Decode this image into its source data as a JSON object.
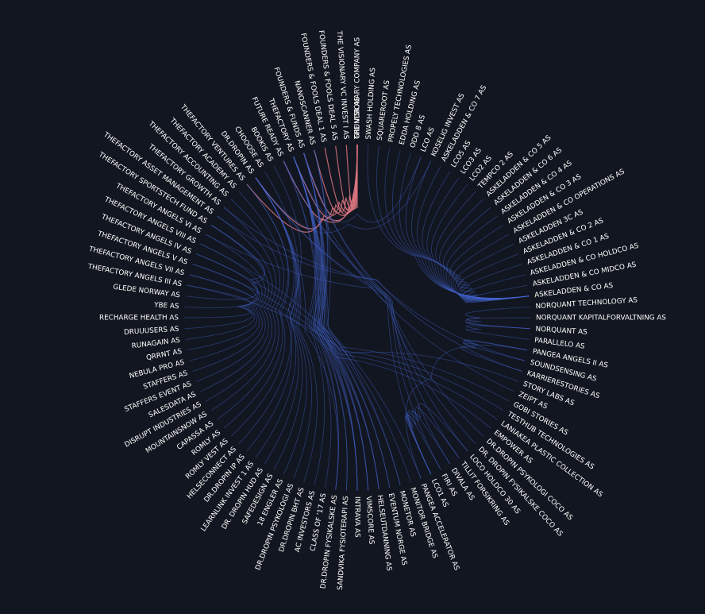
{
  "colors": {
    "background": "#121620",
    "label": "#ffffff",
    "link_blue": "#4466d4",
    "link_red": "#d9747f"
  },
  "diagram": {
    "type": "hierarchical-edge-bundling",
    "nodes": [
      "GRUNDR AS",
      "SWASH HOLDING AS",
      "SQUAREROOT AS",
      "PROPELY TECHNOLOGIES AS",
      "EDDA HOLDING AS",
      "ODD 8 AS",
      "LCO AS",
      "KOSELIG INVEST AS",
      "ASKELADDEN & CO 7 AS",
      "LCO5 AS",
      "LCO3 AS",
      "LCO2 AS",
      "TEMPCO 2 AS",
      "ASKELADDEN & CO 5 AS",
      "ASKELADDEN & CO 6 AS",
      "ASKELADDEN & CO 4 AS",
      "ASKELADDEN & CO 3 AS",
      "ASKELADDEN & CO OPERATIONS AS",
      "ASKELADDEN 3C AS",
      "ASKELADDEN & CO 2 AS",
      "ASKELADDEN & CO 1 AS",
      "ASKELADDEN & CO HOLDCO AS",
      "ASKELADDEN & CO MIDCO AS",
      "ASKELADDEN & CO AS",
      "NORQUANT TECHNOLOGY AS",
      "NORQUANT KAPITALFORVALTNING AS",
      "NORQUANT AS",
      "PARALLELO AS",
      "PANGEA ANGELS II AS",
      "SOUNDSENSING AS",
      "KARRIERESTORIES AS",
      "STORY LABS AS",
      "ZEIPT AS",
      "GOBI STORIES AS",
      "TESTHUB TECHNOLOGIES AS",
      "LANIAKEA PLASTIC COLLECTION AS",
      "EMPOWER AS",
      "DR.DROPIN PSYKOLOGI COCO AS",
      "DR. DROPIN FYSIKALSKE COCO AS",
      "LOCO HOLDCO 30 AS",
      "TILLIT FORSIKRING AS",
      "DIVALA AS",
      "FIRI AS",
      "LCO1 AS",
      "PANGEA ACCELERATOR AS",
      "MONITOR BRIDGE AS",
      "MONETOR AS",
      "EVENTUM NORGE AS",
      "HELSEUTDANNING AS",
      "VIMSCORE AS",
      "INTRAVA AS",
      "SANDVIKA FYSIOTERAPI AS",
      "DR.DROPIN FYSIKALSKE AS",
      "CLASS OF '17 AS",
      "AC INVESTORS AS",
      "DR.DROPIN BHT AS",
      "DR.DROPIN PSYKOLOGI AS",
      "18 ENGLER AS",
      "SAFEDESIGN AS",
      "DR. DROPIN HUD AS",
      "LEARNLINK INVEST 1 AS",
      "DR.DROPIN IP AS",
      "HELSECONNECT AS",
      "ROMLY VEST AS",
      "ROMLY AS",
      "CAPASSA AS",
      "MOUNTAINSNOW AS",
      "DISRUPT INDUSTRIES AS",
      "SALESDATA AS",
      "STAFFERS EVENT AS",
      "STAFFERS AS",
      "NEBULA PRO AS",
      "QRRNT AS",
      "RUNAGAIN AS",
      "DRUUUSERS AS",
      "RECHARGE HEALTH AS",
      "YBE AS",
      "GLEDE NORWAY AS",
      "THEFACTORY ANGELS III AS",
      "THEFACTORY ANGELS VII AS",
      "THEFACTORY ANGELS V AS",
      "THEFACTORY ANGELS IV AS",
      "THEFACTORY ANGELS VIII AS",
      "THEFACTORY ANGELS VI AS",
      "THEFACTORY SPORTSTECH FUND AS",
      "THEFACTORY ASSET MANAGEMENT AS",
      "THEFACTORY GROWTH AS",
      "THEFACTORY ACCOUNTING AS",
      "THEFACTORY ACADEMY AS",
      "THEFACTORY VENTURES AS",
      "DR.DROPIN AS",
      "CHOOOSE AS",
      "BOOKIS AS",
      "FUTURE READY AS",
      "THEFACTORY AS",
      "FOUNDERS & FUNDS AS",
      "NANOSCANNER AS",
      "FOUNDERS & FOOLS DEAL 1 AS",
      "FOUNDERS & FOOLS DEAL 5 AS",
      "THE VISIONARY VC INVEST I AS",
      "THE VISIONARY COMPANY AS"
    ],
    "links": [
      [
        "GRUNDR AS",
        "THE VISIONARY COMPANY AS",
        "red"
      ],
      [
        "GRUNDR AS",
        "THE VISIONARY VC INVEST I AS",
        "red"
      ],
      [
        "GRUNDR AS",
        "FOUNDERS & FOOLS DEAL 5 AS",
        "red"
      ],
      [
        "GRUNDR AS",
        "FOUNDERS & FOOLS DEAL 1 AS",
        "red"
      ],
      [
        "GRUNDR AS",
        "NANOSCANNER AS",
        "red"
      ],
      [
        "GRUNDR AS",
        "FOUNDERS & FUNDS AS",
        "red"
      ],
      [
        "GRUNDR AS",
        "THEFACTORY AS",
        "red"
      ],
      [
        "GRUNDR AS",
        "FUTURE READY AS",
        "red"
      ],
      [
        "GRUNDR AS",
        "DR.DROPIN AS",
        "red"
      ],
      [
        "GRUNDR AS",
        "THEFACTORY VENTURES AS",
        "red"
      ],
      [
        "THEFACTORY AS",
        "VIMSCORE AS",
        "blue"
      ],
      [
        "THEFACTORY AS",
        "INTRAVA AS",
        "blue"
      ],
      [
        "THEFACTORY AS",
        "HELSEUTDANNING AS",
        "blue"
      ],
      [
        "THEFACTORY AS",
        "EVENTUM NORGE AS",
        "blue"
      ],
      [
        "THEFACTORY AS",
        "SANDVIKA FYSIOTERAPI AS",
        "blue"
      ],
      [
        "THEFACTORY AS",
        "DR.DROPIN FYSIKALSKE AS",
        "blue"
      ],
      [
        "THEFACTORY AS",
        "MONETOR AS",
        "blue"
      ],
      [
        "THEFACTORY AS",
        "MONITOR BRIDGE AS",
        "blue"
      ],
      [
        "THEFACTORY AS",
        "CLASS OF '17 AS",
        "blue"
      ],
      [
        "THEFACTORY AS",
        "AC INVESTORS AS",
        "blue"
      ],
      [
        "THEFACTORY AS",
        "PANGEA ACCELERATOR AS",
        "blue"
      ],
      [
        "THEFACTORY AS",
        "LCO1 AS",
        "blue"
      ],
      [
        "FOUNDERS & FUNDS AS",
        "INTRAVA AS",
        "blue"
      ],
      [
        "FOUNDERS & FUNDS AS",
        "VIMSCORE AS",
        "blue"
      ],
      [
        "FOUNDERS & FUNDS AS",
        "HELSEUTDANNING AS",
        "blue"
      ],
      [
        "FOUNDERS & FUNDS AS",
        "SANDVIKA FYSIOTERAPI AS",
        "blue"
      ],
      [
        "FOUNDERS & FUNDS AS",
        "EVENTUM NORGE AS",
        "blue"
      ],
      [
        "FOUNDERS & FUNDS AS",
        "DR.DROPIN FYSIKALSKE AS",
        "blue"
      ],
      [
        "FOUNDERS & FUNDS AS",
        "FIRI AS",
        "blue"
      ],
      [
        "FOUNDERS & FUNDS AS",
        "DIVALA AS",
        "blue"
      ],
      [
        "NANOSCANNER AS",
        "VIMSCORE AS",
        "blue"
      ],
      [
        "NANOSCANNER AS",
        "INTRAVA AS",
        "blue"
      ],
      [
        "NANOSCANNER AS",
        "MONETOR AS",
        "blue"
      ],
      [
        "FUTURE READY AS",
        "INTRAVA AS",
        "blue"
      ],
      [
        "FUTURE READY AS",
        "HELSEUTDANNING AS",
        "blue"
      ],
      [
        "FUTURE READY AS",
        "TILLIT FORSIKRING AS",
        "blue"
      ],
      [
        "FUTURE READY AS",
        "LOCO HOLDCO 30 AS",
        "blue"
      ],
      [
        "DR.DROPIN AS",
        "DR.DROPIN BHT AS",
        "blue"
      ],
      [
        "DR.DROPIN AS",
        "DR.DROPIN PSYKOLOGI AS",
        "blue"
      ],
      [
        "DR.DROPIN AS",
        "DR. DROPIN HUD AS",
        "blue"
      ],
      [
        "DR.DROPIN AS",
        "DR.DROPIN IP AS",
        "blue"
      ],
      [
        "DR.DROPIN AS",
        "DR.DROPIN FYSIKALSKE AS",
        "blue"
      ],
      [
        "DR.DROPIN AS",
        "DR.DROPIN PSYKOLOGI COCO AS",
        "blue"
      ],
      [
        "DR.DROPIN AS",
        "DR. DROPIN FYSIKALSKE COCO AS",
        "blue"
      ],
      [
        "DR.DROPIN AS",
        "18 ENGLER AS",
        "blue"
      ],
      [
        "DR.DROPIN AS",
        "SAFEDESIGN AS",
        "blue"
      ],
      [
        "CHOOOSE AS",
        "LEARNLINK INVEST 1 AS",
        "blue"
      ],
      [
        "BOOKIS AS",
        "HELSECONNECT AS",
        "blue"
      ],
      [
        "THEFACTORY VENTURES AS",
        "ROMLY VEST AS",
        "blue"
      ],
      [
        "THEFACTORY VENTURES AS",
        "ROMLY AS",
        "blue"
      ],
      [
        "THEFACTORY ACADEMY AS",
        "CAPASSA AS",
        "blue"
      ],
      [
        "THEFACTORY ACCOUNTING AS",
        "MOUNTAINSNOW AS",
        "blue"
      ],
      [
        "THEFACTORY GROWTH AS",
        "DISRUPT INDUSTRIES AS",
        "blue"
      ],
      [
        "THEFACTORY ASSET MANAGEMENT AS",
        "SALESDATA AS",
        "blue"
      ],
      [
        "THEFACTORY SPORTSTECH FUND AS",
        "STAFFERS EVENT AS",
        "blue"
      ],
      [
        "THEFACTORY ANGELS VI AS",
        "STAFFERS AS",
        "blue"
      ],
      [
        "THEFACTORY ANGELS VIII AS",
        "NEBULA PRO AS",
        "blue"
      ],
      [
        "THEFACTORY ANGELS IV AS",
        "QRRNT AS",
        "blue"
      ],
      [
        "THEFACTORY ANGELS V AS",
        "RUNAGAIN AS",
        "blue"
      ],
      [
        "THEFACTORY ANGELS VII AS",
        "DRUUUSERS AS",
        "blue"
      ],
      [
        "THEFACTORY ANGELS III AS",
        "RECHARGE HEALTH AS",
        "blue"
      ],
      [
        "THEFACTORY SPORTSTECH FUND AS",
        "YBE AS",
        "blue"
      ],
      [
        "THEFACTORY SPORTSTECH FUND AS",
        "GLEDE NORWAY AS",
        "blue"
      ],
      [
        "THEFACTORY ANGELS VI AS",
        "ZEIPT AS",
        "blue"
      ],
      [
        "THEFACTORY ANGELS VIII AS",
        "GOBI STORIES AS",
        "blue"
      ],
      [
        "THEFACTORY ANGELS IV AS",
        "TESTHUB TECHNOLOGIES AS",
        "blue"
      ],
      [
        "THEFACTORY ANGELS V AS",
        "LANIAKEA PLASTIC COLLECTION AS",
        "blue"
      ],
      [
        "THEFACTORY ANGELS VII AS",
        "EMPOWER AS",
        "blue"
      ],
      [
        "THEFACTORY ANGELS III AS",
        "STORY LABS AS",
        "blue"
      ],
      [
        "THEFACTORY GROWTH AS",
        "KARRIERESTORIES AS",
        "blue"
      ],
      [
        "THEFACTORY ASSET MANAGEMENT AS",
        "SOUNDSENSING AS",
        "blue"
      ],
      [
        "ASKELADDEN & CO AS",
        "KOSELIG INVEST AS",
        "blue"
      ],
      [
        "ASKELADDEN & CO AS",
        "ASKELADDEN & CO 7 AS",
        "blue"
      ],
      [
        "ASKELADDEN & CO AS",
        "ASKELADDEN & CO 5 AS",
        "blue"
      ],
      [
        "ASKELADDEN & CO AS",
        "ASKELADDEN & CO 6 AS",
        "blue"
      ],
      [
        "ASKELADDEN & CO AS",
        "ASKELADDEN & CO 4 AS",
        "blue"
      ],
      [
        "ASKELADDEN & CO AS",
        "ASKELADDEN & CO 3 AS",
        "blue"
      ],
      [
        "ASKELADDEN & CO AS",
        "ASKELADDEN & CO OPERATIONS AS",
        "blue"
      ],
      [
        "ASKELADDEN & CO AS",
        "ASKELADDEN 3C AS",
        "blue"
      ],
      [
        "ASKELADDEN & CO AS",
        "ASKELADDEN & CO 2 AS",
        "blue"
      ],
      [
        "ASKELADDEN & CO AS",
        "ASKELADDEN & CO 1 AS",
        "blue"
      ],
      [
        "ASKELADDEN & CO AS",
        "ASKELADDEN & CO HOLDCO AS",
        "blue"
      ],
      [
        "ASKELADDEN & CO AS",
        "ASKELADDEN & CO MIDCO AS",
        "blue"
      ],
      [
        "ASKELADDEN & CO AS",
        "LCO AS",
        "blue"
      ],
      [
        "ASKELADDEN & CO AS",
        "LCO5 AS",
        "blue"
      ],
      [
        "ASKELADDEN & CO AS",
        "LCO3 AS",
        "blue"
      ],
      [
        "ASKELADDEN & CO AS",
        "LCO2 AS",
        "blue"
      ],
      [
        "ASKELADDEN & CO AS",
        "TEMPCO 2 AS",
        "blue"
      ],
      [
        "ASKELADDEN & CO AS",
        "ODD 8 AS",
        "blue"
      ],
      [
        "ASKELADDEN & CO AS",
        "EDDA HOLDING AS",
        "blue"
      ],
      [
        "ASKELADDEN & CO AS",
        "PROPELY TECHNOLOGIES AS",
        "blue"
      ],
      [
        "ASKELADDEN & CO AS",
        "SQUAREROOT AS",
        "blue"
      ],
      [
        "ASKELADDEN & CO AS",
        "SWASH HOLDING AS",
        "blue"
      ],
      [
        "NORQUANT AS",
        "NORQUANT TECHNOLOGY AS",
        "blue"
      ],
      [
        "NORQUANT AS",
        "NORQUANT KAPITALFORVALTNING AS",
        "blue"
      ],
      [
        "NORQUANT AS",
        "PARALLELO AS",
        "blue"
      ],
      [
        "PANGEA ANGELS II AS",
        "SOUNDSENSING AS",
        "blue"
      ],
      [
        "PANGEA ANGELS II AS",
        "PANGEA ACCELERATOR AS",
        "blue"
      ],
      [
        "PANGEA ANGELS II AS",
        "KARRIERESTORIES AS",
        "blue"
      ],
      [
        "LCO1 AS",
        "LOCO HOLDCO 30 AS",
        "blue"
      ],
      [
        "LCO1 AS",
        "TILLIT FORSIKRING AS",
        "blue"
      ],
      [
        "LCO1 AS",
        "FIRI AS",
        "blue"
      ],
      [
        "LCO1 AS",
        "DIVALA AS",
        "blue"
      ],
      [
        "KOSELIG INVEST AS",
        "DR.DROPIN AS",
        "blue"
      ],
      [
        "LCO AS",
        "THEFACTORY AS",
        "blue"
      ]
    ]
  }
}
